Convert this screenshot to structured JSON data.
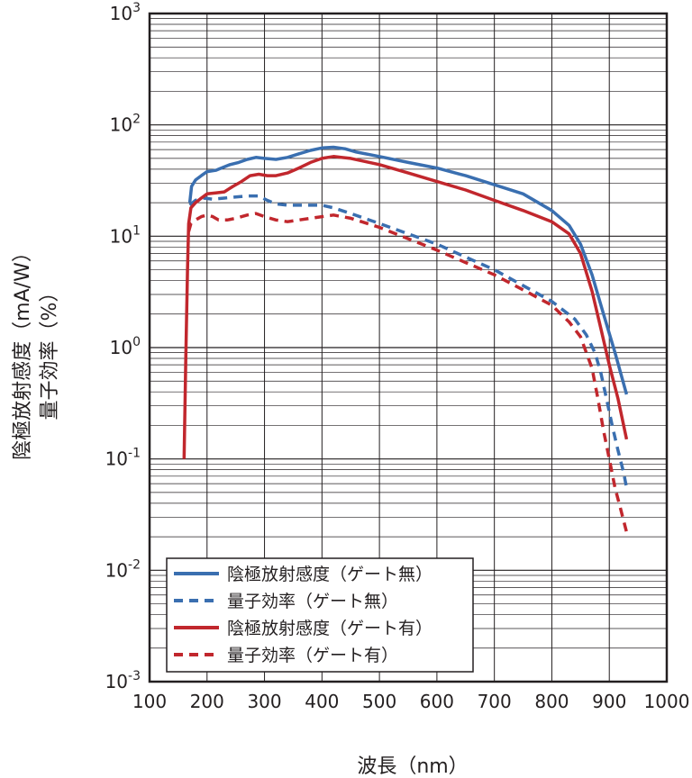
{
  "chart_data": {
    "type": "line",
    "xlabel": "波長（nm）",
    "ylabel": "陰極放射感度（mA/W）",
    "ylabel2": "量子効率（%）",
    "xlim": [
      100,
      1000
    ],
    "ylim": [
      0.001,
      1000
    ],
    "yscale": "log",
    "grid": true,
    "legend_position": "bottom-left",
    "x_ticks": [
      "100",
      "200",
      "300",
      "400",
      "500",
      "600",
      "700",
      "800",
      "900",
      "1000"
    ],
    "y_ticks": [
      {
        "base": "10",
        "exp": "3"
      },
      {
        "base": "10",
        "exp": "2"
      },
      {
        "base": "10",
        "exp": "1"
      },
      {
        "base": "10",
        "exp": "0"
      },
      {
        "base": "10",
        "exp": "-1"
      },
      {
        "base": "10",
        "exp": "-2"
      },
      {
        "base": "10",
        "exp": "-3"
      }
    ],
    "series": [
      {
        "name": "陰極放射感度（ゲート無）",
        "color": "#3a6fb0",
        "dash": "solid",
        "points": [
          [
            170,
            20
          ],
          [
            173,
            28
          ],
          [
            180,
            32
          ],
          [
            190,
            35
          ],
          [
            200,
            38
          ],
          [
            215,
            39
          ],
          [
            225,
            41
          ],
          [
            240,
            44
          ],
          [
            255,
            46
          ],
          [
            270,
            49
          ],
          [
            285,
            51
          ],
          [
            300,
            50
          ],
          [
            320,
            49
          ],
          [
            340,
            51
          ],
          [
            360,
            55
          ],
          [
            380,
            59
          ],
          [
            400,
            62
          ],
          [
            420,
            63
          ],
          [
            440,
            61
          ],
          [
            460,
            57
          ],
          [
            500,
            52
          ],
          [
            550,
            46
          ],
          [
            600,
            41
          ],
          [
            650,
            35
          ],
          [
            700,
            29
          ],
          [
            750,
            24
          ],
          [
            800,
            17
          ],
          [
            830,
            12.5
          ],
          [
            850,
            8.5
          ],
          [
            870,
            4.5
          ],
          [
            890,
            2
          ],
          [
            910,
            0.9
          ],
          [
            930,
            0.38
          ]
        ]
      },
      {
        "name": "量子効率（ゲート無）",
        "color": "#3a6fb0",
        "dash": "dashed",
        "points": [
          [
            170,
            19
          ],
          [
            180,
            21
          ],
          [
            195,
            22
          ],
          [
            210,
            21.5
          ],
          [
            230,
            22
          ],
          [
            250,
            22.5
          ],
          [
            270,
            23
          ],
          [
            290,
            23
          ],
          [
            305,
            21
          ],
          [
            320,
            19.5
          ],
          [
            340,
            19
          ],
          [
            360,
            19
          ],
          [
            380,
            19
          ],
          [
            400,
            19
          ],
          [
            420,
            18
          ],
          [
            450,
            16
          ],
          [
            500,
            13
          ],
          [
            550,
            10.5
          ],
          [
            600,
            8.5
          ],
          [
            650,
            6.5
          ],
          [
            700,
            5
          ],
          [
            750,
            3.6
          ],
          [
            800,
            2.6
          ],
          [
            840,
            1.8
          ],
          [
            860,
            1.3
          ],
          [
            875,
            0.9
          ],
          [
            885,
            0.6
          ],
          [
            895,
            0.35
          ],
          [
            905,
            0.2
          ],
          [
            915,
            0.12
          ],
          [
            925,
            0.075
          ],
          [
            930,
            0.055
          ]
        ]
      },
      {
        "name": "陰極放射感度（ゲート有）",
        "color": "#c1272d",
        "dash": "solid",
        "points": [
          [
            160,
            0.1
          ],
          [
            163,
            0.8
          ],
          [
            166,
            5
          ],
          [
            168,
            13
          ],
          [
            172,
            18
          ],
          [
            180,
            20
          ],
          [
            190,
            22
          ],
          [
            200,
            24
          ],
          [
            215,
            24.5
          ],
          [
            230,
            25
          ],
          [
            245,
            28
          ],
          [
            260,
            31
          ],
          [
            275,
            35
          ],
          [
            290,
            36
          ],
          [
            305,
            35
          ],
          [
            320,
            35
          ],
          [
            340,
            37
          ],
          [
            360,
            41
          ],
          [
            380,
            46
          ],
          [
            400,
            50
          ],
          [
            420,
            52
          ],
          [
            450,
            50
          ],
          [
            500,
            44
          ],
          [
            550,
            37
          ],
          [
            600,
            31
          ],
          [
            650,
            26
          ],
          [
            700,
            21
          ],
          [
            750,
            17
          ],
          [
            800,
            13.5
          ],
          [
            830,
            10.5
          ],
          [
            850,
            7
          ],
          [
            870,
            3.2
          ],
          [
            885,
            1.5
          ],
          [
            900,
            0.7
          ],
          [
            915,
            0.35
          ],
          [
            930,
            0.15
          ]
        ]
      },
      {
        "name": "量子効率（ゲート有）",
        "color": "#c1272d",
        "dash": "dashed",
        "points": [
          [
            168,
            11
          ],
          [
            172,
            13
          ],
          [
            180,
            14
          ],
          [
            190,
            15
          ],
          [
            200,
            15.5
          ],
          [
            210,
            15
          ],
          [
            220,
            14
          ],
          [
            235,
            14
          ],
          [
            250,
            14.5
          ],
          [
            270,
            15.5
          ],
          [
            285,
            16
          ],
          [
            300,
            15
          ],
          [
            320,
            14
          ],
          [
            340,
            13.5
          ],
          [
            360,
            14
          ],
          [
            380,
            14.5
          ],
          [
            400,
            15
          ],
          [
            420,
            15.5
          ],
          [
            450,
            14.5
          ],
          [
            500,
            12
          ],
          [
            550,
            9.5
          ],
          [
            600,
            7.5
          ],
          [
            650,
            5.8
          ],
          [
            700,
            4.5
          ],
          [
            750,
            3.3
          ],
          [
            800,
            2.4
          ],
          [
            830,
            1.7
          ],
          [
            850,
            1.25
          ],
          [
            870,
            0.65
          ],
          [
            880,
            0.35
          ],
          [
            890,
            0.18
          ],
          [
            900,
            0.1
          ],
          [
            910,
            0.055
          ],
          [
            920,
            0.035
          ],
          [
            930,
            0.022
          ]
        ]
      }
    ]
  }
}
